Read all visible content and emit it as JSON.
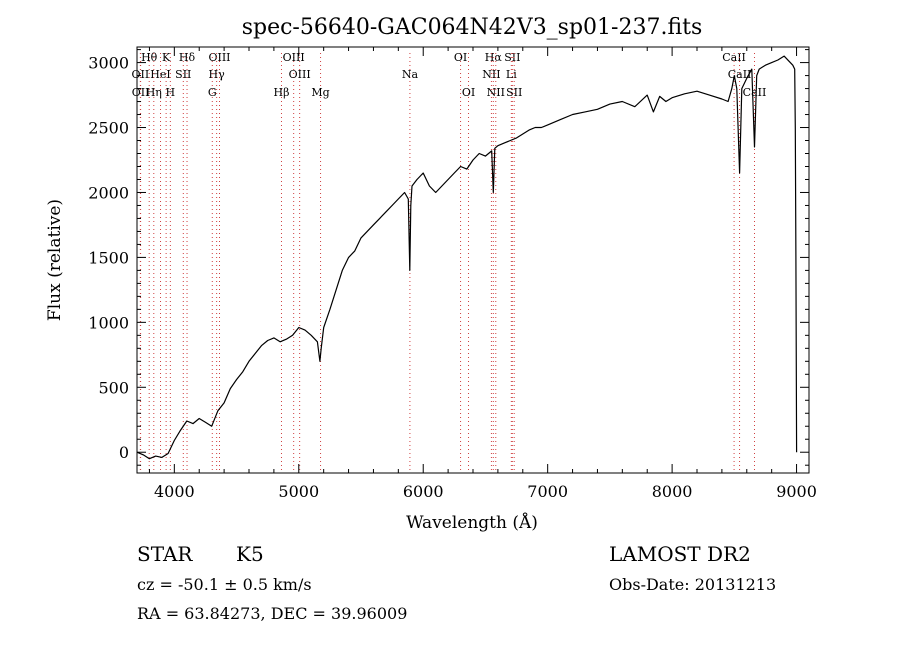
{
  "chart_data": {
    "type": "line",
    "title": "spec-56640-GAC064N42V3_sp01-237.fits",
    "xlabel": "Wavelength (Å)",
    "ylabel": "Flux (relative)",
    "xlim": [
      3700,
      9100
    ],
    "ylim": [
      -160,
      3120
    ],
    "xticks": [
      4000,
      5000,
      6000,
      7000,
      8000,
      9000
    ],
    "yticks": [
      0,
      500,
      1000,
      1500,
      2000,
      2500,
      3000
    ],
    "grid": false,
    "series": [
      {
        "x": [
          3700,
          3750,
          3800,
          3850,
          3900,
          3950,
          4000,
          4050,
          4100,
          4150,
          4200,
          4250,
          4300,
          4350,
          4400,
          4450,
          4500,
          4550,
          4600,
          4650,
          4700,
          4750,
          4800,
          4850,
          4900,
          4950,
          5000,
          5050,
          5100,
          5150,
          5170,
          5180,
          5200,
          5250,
          5300,
          5350,
          5400,
          5450,
          5500,
          5550,
          5600,
          5650,
          5700,
          5750,
          5800,
          5850,
          5880,
          5892,
          5900,
          5910,
          5950,
          6000,
          6050,
          6100,
          6150,
          6200,
          6250,
          6300,
          6350,
          6400,
          6450,
          6500,
          6550,
          6563,
          6575,
          6600,
          6650,
          6700,
          6750,
          6800,
          6850,
          6900,
          6950,
          7000,
          7100,
          7200,
          7300,
          7400,
          7500,
          7600,
          7700,
          7800,
          7850,
          7900,
          7950,
          8000,
          8100,
          8200,
          8300,
          8400,
          8450,
          8480,
          8500,
          8520,
          8542,
          8560,
          8600,
          8640,
          8662,
          8680,
          8700,
          8750,
          8800,
          8850,
          8900,
          8950,
          8970,
          8985,
          8990,
          8995,
          9000
        ],
        "y": [
          0,
          -20,
          -50,
          -30,
          -40,
          -10,
          90,
          170,
          240,
          220,
          260,
          230,
          200,
          320,
          380,
          490,
          560,
          620,
          700,
          760,
          820,
          860,
          880,
          850,
          870,
          900,
          960,
          940,
          900,
          850,
          700,
          800,
          960,
          1100,
          1250,
          1400,
          1500,
          1550,
          1650,
          1700,
          1750,
          1800,
          1850,
          1900,
          1950,
          2000,
          1950,
          1400,
          1900,
          2050,
          2100,
          2150,
          2050,
          2000,
          2050,
          2100,
          2150,
          2200,
          2180,
          2250,
          2300,
          2280,
          2320,
          2000,
          2340,
          2360,
          2380,
          2400,
          2420,
          2450,
          2480,
          2500,
          2500,
          2520,
          2560,
          2600,
          2620,
          2640,
          2680,
          2700,
          2660,
          2750,
          2620,
          2740,
          2700,
          2730,
          2760,
          2780,
          2750,
          2720,
          2700,
          2800,
          2900,
          2800,
          2150,
          2800,
          2880,
          2950,
          2350,
          2900,
          2950,
          2980,
          3000,
          3020,
          3050,
          3000,
          2980,
          2950,
          2500,
          1500,
          0
        ]
      }
    ],
    "lines": [
      {
        "text": "Hθ",
        "x": 3798,
        "row": 0
      },
      {
        "text": "K",
        "x": 3934,
        "row": 0
      },
      {
        "text": "Hδ",
        "x": 4102,
        "row": 0
      },
      {
        "text": "OIII",
        "x": 4363,
        "row": 0
      },
      {
        "text": "OIII",
        "x": 4959,
        "row": 0
      },
      {
        "text": "OI",
        "x": 6300,
        "row": 0
      },
      {
        "text": "Hα",
        "x": 6563,
        "row": 0
      },
      {
        "text": "SII",
        "x": 6716,
        "row": 0
      },
      {
        "text": "CaII",
        "x": 8498,
        "row": 0
      },
      {
        "text": "OII",
        "x": 3727,
        "row": 1
      },
      {
        "text": "HeI",
        "x": 3889,
        "row": 1
      },
      {
        "text": "SII",
        "x": 4072,
        "row": 1
      },
      {
        "text": "Hγ",
        "x": 4340,
        "row": 1
      },
      {
        "text": "OIII",
        "x": 5007,
        "row": 1
      },
      {
        "text": "Na",
        "x": 5893,
        "row": 1
      },
      {
        "text": "NII",
        "x": 6548,
        "row": 1
      },
      {
        "text": "Li",
        "x": 6708,
        "row": 1
      },
      {
        "text": "CaII",
        "x": 8542,
        "row": 1
      },
      {
        "text": "OII",
        "x": 3729,
        "row": 2
      },
      {
        "text": "Hη",
        "x": 3835,
        "row": 2
      },
      {
        "text": "H",
        "x": 3968,
        "row": 2
      },
      {
        "text": "G",
        "x": 4305,
        "row": 2
      },
      {
        "text": "Hβ",
        "x": 4861,
        "row": 2
      },
      {
        "text": "Mg",
        "x": 5175,
        "row": 2
      },
      {
        "text": "OI",
        "x": 6364,
        "row": 2
      },
      {
        "text": "NII",
        "x": 6583,
        "row": 2
      },
      {
        "text": "SII",
        "x": 6731,
        "row": 2
      },
      {
        "text": "CaII",
        "x": 8662,
        "row": 2
      }
    ]
  },
  "info": {
    "object_type": "STAR",
    "subclass": "K5",
    "survey": "LAMOST DR2",
    "cz": "cz = -50.1 ± 0.5 km/s",
    "obs_date": "Obs-Date: 20131213",
    "coords": "RA =  63.84273, DEC =  39.96009"
  }
}
